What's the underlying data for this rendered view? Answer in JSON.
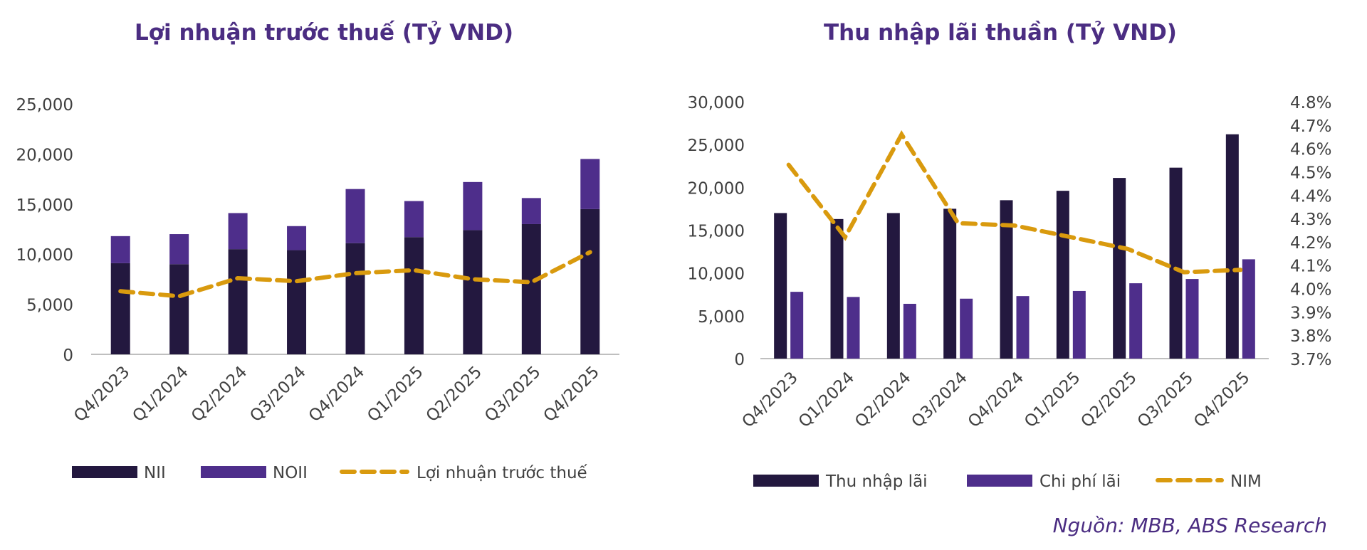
{
  "colors": {
    "nii": "#23183f",
    "noii": "#4e2e8b",
    "line": "#d99a0e",
    "title": "#4b2d82",
    "axis_text": "#404040",
    "axis_line": "#bfbfbf"
  },
  "chart_data": [
    {
      "type": "bar",
      "stacked": true,
      "title": "Lợi nhuận trước thuế (Tỷ VND)",
      "categories": [
        "Q4/2023",
        "Q1/2024",
        "Q2/2024",
        "Q3/2024",
        "Q4/2024",
        "Q1/2025",
        "Q2/2025",
        "Q3/2025",
        "Q4/2025"
      ],
      "ylim": [
        0,
        25000
      ],
      "yticks": [
        "25,000",
        "20,000",
        "15,000",
        "10,000",
        "5,000",
        "0"
      ],
      "series": [
        {
          "name": "NII",
          "kind": "bar",
          "values": [
            9100,
            9000,
            10500,
            10400,
            11100,
            11700,
            12400,
            13000,
            14500
          ]
        },
        {
          "name": "NOII",
          "kind": "bar",
          "values": [
            2700,
            3000,
            3600,
            2400,
            5400,
            3600,
            4800,
            2600,
            5000
          ]
        },
        {
          "name": "Lợi nhuận trước thuế",
          "kind": "line",
          "style": "dashed",
          "values": [
            6300,
            5800,
            7600,
            7300,
            8100,
            8400,
            7500,
            7200,
            10200
          ]
        }
      ],
      "legend": [
        "NII",
        "NOII",
        "Lợi nhuận trước thuế"
      ]
    },
    {
      "type": "bar",
      "title": "Thu nhập lãi thuần (Tỷ VND)",
      "categories": [
        "Q4/2023",
        "Q1/2024",
        "Q2/2024",
        "Q3/2024",
        "Q4/2024",
        "Q1/2025",
        "Q2/2025",
        "Q3/2025",
        "Q4/2025"
      ],
      "ylim": [
        0,
        30000
      ],
      "yticks": [
        "30,000",
        "25,000",
        "20,000",
        "15,000",
        "10,000",
        "5,000",
        "0"
      ],
      "y2lim": [
        3.7,
        4.8
      ],
      "y2ticks": [
        "4.8%",
        "4.7%",
        "4.6%",
        "4.5%",
        "4.4%",
        "4.3%",
        "4.2%",
        "4.1%",
        "4.0%",
        "3.9%",
        "3.8%",
        "3.7%"
      ],
      "series": [
        {
          "name": "Thu nhập lãi",
          "kind": "bar",
          "values": [
            17000,
            16300,
            17000,
            17500,
            18500,
            19600,
            21100,
            22300,
            26200
          ]
        },
        {
          "name": "Chi phí lãi",
          "kind": "bar",
          "values": [
            7800,
            7200,
            6400,
            7000,
            7300,
            7900,
            8800,
            9300,
            11600
          ]
        },
        {
          "name": "NIM",
          "kind": "line",
          "style": "dashed",
          "axis": "right",
          "unit": "%",
          "values": [
            4.53,
            4.22,
            4.66,
            4.28,
            4.27,
            4.22,
            4.17,
            4.07,
            4.08
          ]
        }
      ],
      "legend": [
        "Thu nhập lãi",
        "Chi phí lãi",
        "NIM"
      ]
    }
  ],
  "source": "Nguồn: MBB, ABS Research"
}
